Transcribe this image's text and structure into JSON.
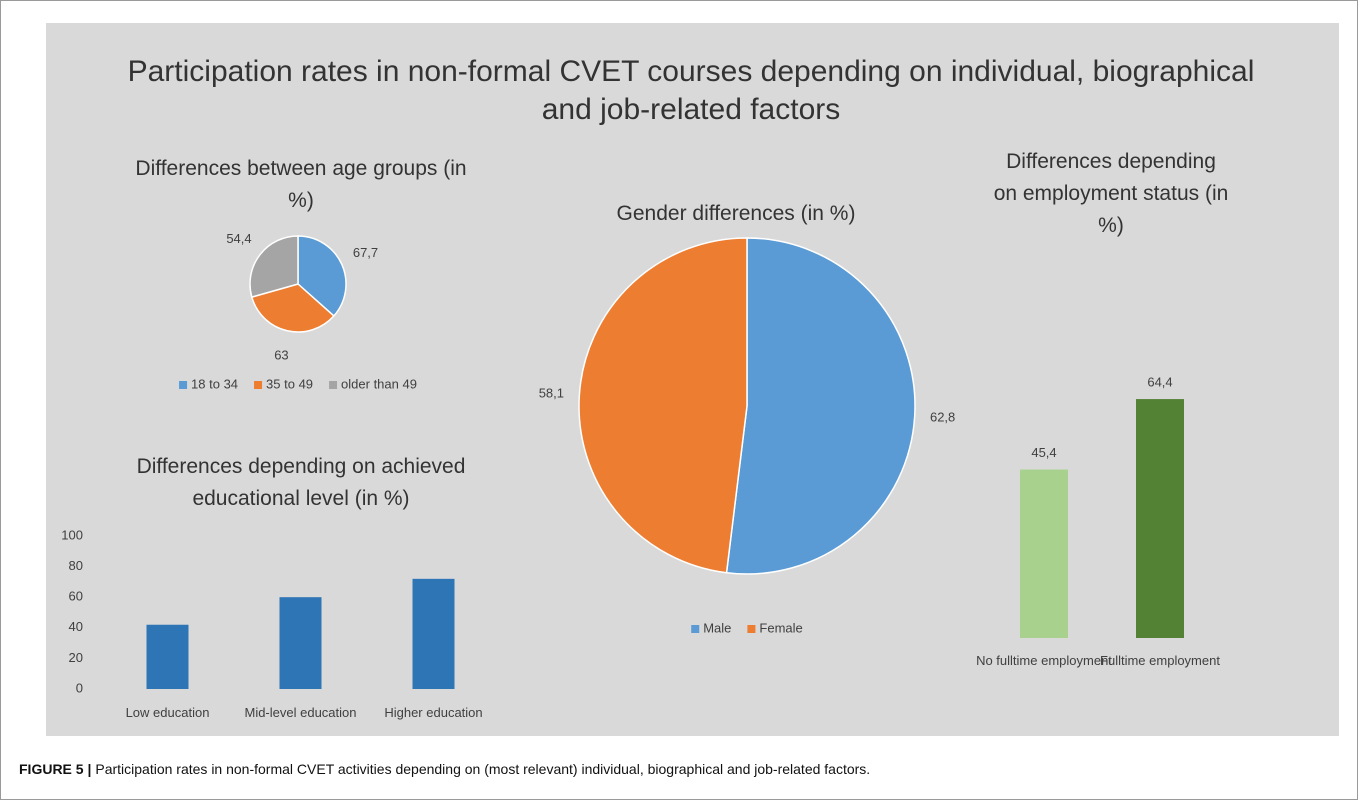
{
  "title": "Participation rates in non-formal CVET courses depending on individual, biographical and job-related factors",
  "caption": {
    "label": "FIGURE 5 |",
    "text": "Participation rates in non-formal CVET activities depending on (most relevant) individual, biographical and job-related factors."
  },
  "chart_data": [
    {
      "type": "pie",
      "title": "Differences between age groups (in %)",
      "categories": [
        "18 to 34",
        "35 to 49",
        "older than 49"
      ],
      "values": [
        67.7,
        63,
        54.4
      ],
      "value_labels": [
        "67,7",
        "63",
        "54,4"
      ],
      "colors": [
        "#5b9bd5",
        "#ed7d31",
        "#a5a5a5"
      ]
    },
    {
      "type": "bar",
      "title": "Differences depending on achieved educational level (in %)",
      "categories": [
        "Low education",
        "Mid-level education",
        "Higher education"
      ],
      "values": [
        42,
        60,
        72
      ],
      "color": "#2e75b6",
      "ylim": [
        0,
        100
      ],
      "yticks": [
        0,
        20,
        40,
        60,
        80,
        100
      ],
      "grid": false
    },
    {
      "type": "pie",
      "title": "Gender differences (in %)",
      "categories": [
        "Male",
        "Female"
      ],
      "values": [
        62.8,
        58.1
      ],
      "value_labels": [
        "62,8",
        "58,1"
      ],
      "colors": [
        "#5b9bd5",
        "#ed7d31"
      ]
    },
    {
      "type": "bar",
      "title": "Differences depending on employment status (in %)",
      "categories": [
        "No fulltime employment",
        "Fulltime employment"
      ],
      "values": [
        45.4,
        64.4
      ],
      "value_labels": [
        "45,4",
        "64,4"
      ],
      "colors": [
        "#a9d18e",
        "#548235"
      ]
    }
  ]
}
